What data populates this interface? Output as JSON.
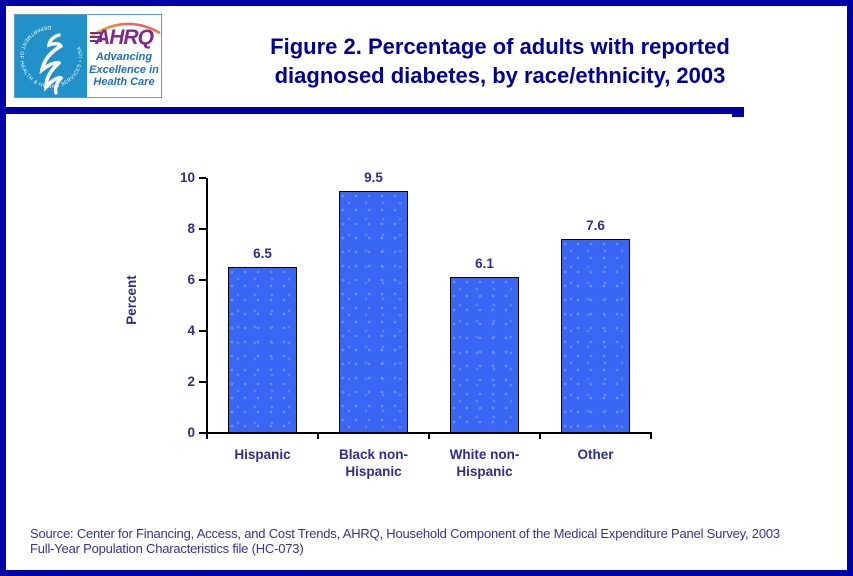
{
  "page": {
    "border_color": "#0000A8",
    "background": "#FFFFFF"
  },
  "header": {
    "logo": {
      "hhs_seal_text": "DEPARTMENT OF HEALTH & HUMAN SERVICES • USA",
      "ahrq_acronym": "AHRQ",
      "ahrq_tagline_line1": "Advancing",
      "ahrq_tagline_line2": "Excellence in",
      "ahrq_tagline_line3": "Health Care",
      "hhs_blue": "#2191C9",
      "ahrq_purple": "#7D2A8C",
      "tagline_blue": "#1F6FC0"
    },
    "title_line1": "Figure 2. Percentage of adults with reported",
    "title_line2": "diagnosed diabetes, by race/ethnicity, 2003",
    "title_color": "#000099"
  },
  "chart_data": {
    "type": "bar",
    "title": "Figure 2. Percentage of adults with reported diagnosed diabetes, by race/ethnicity, 2003",
    "categories": [
      "Hispanic",
      "Black non-Hispanic",
      "White non-Hispanic",
      "Other"
    ],
    "category_lines": [
      [
        "Hispanic"
      ],
      [
        "Black non-",
        "Hispanic"
      ],
      [
        "White non-",
        "Hispanic"
      ],
      [
        "Other"
      ]
    ],
    "values": [
      6.5,
      9.5,
      6.1,
      7.6
    ],
    "data_labels": [
      "6.5",
      "9.5",
      "6.1",
      "7.6"
    ],
    "xlabel": "",
    "ylabel": "Percent",
    "ylim": [
      0,
      10
    ],
    "yticks": [
      0,
      2,
      4,
      6,
      8,
      10
    ],
    "grid": false,
    "legend": "none",
    "bar_color": "#3A66F5",
    "bar_border_color": "#000000",
    "label_color": "#2D2D96"
  },
  "source": {
    "line1": "Source: Center for Financing, Access, and Cost Trends, AHRQ, Household Component of the Medical Expenditure Panel Survey, 2003",
    "line2": "Full-Year Population Characteristics file (HC-073)"
  }
}
